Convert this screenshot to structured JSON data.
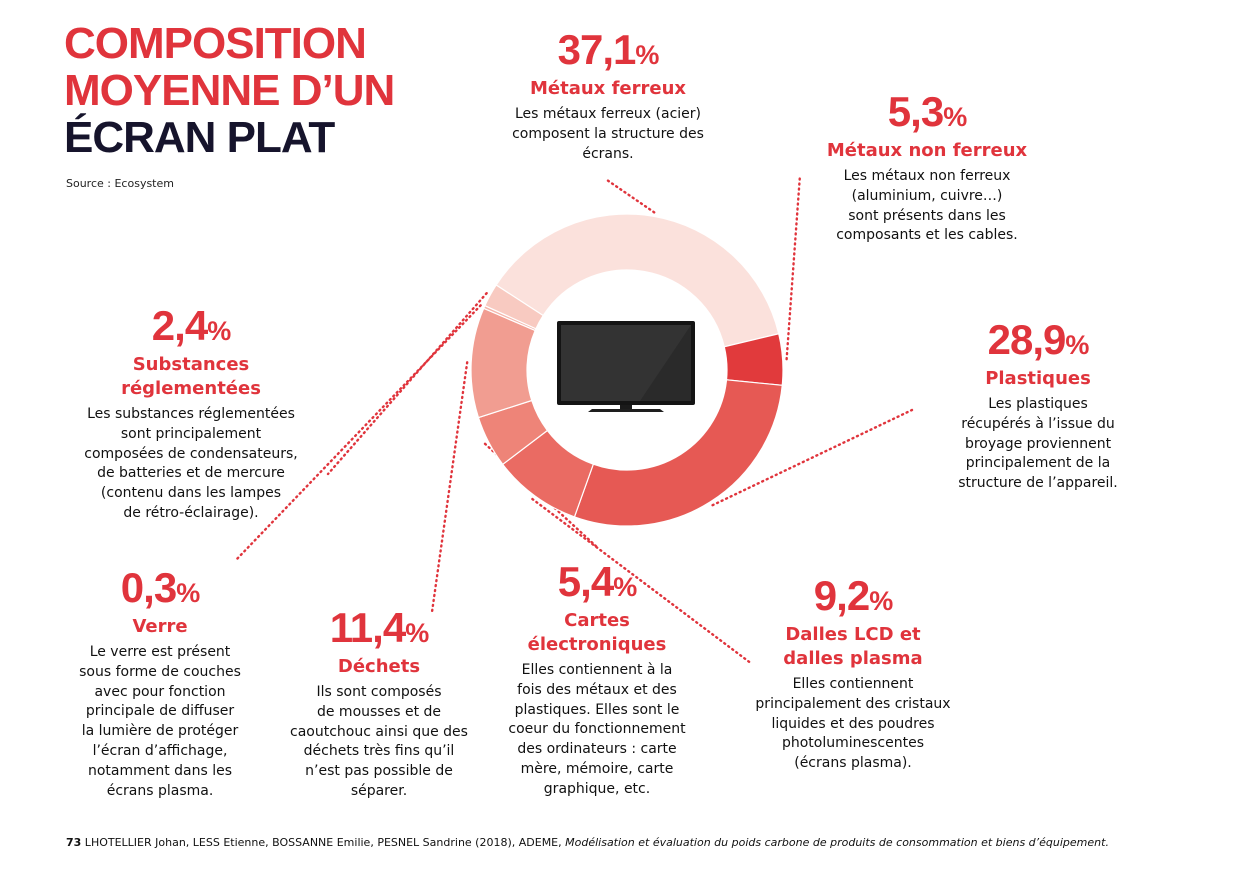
{
  "title": {
    "line1": "COMPOSITION",
    "line2": "MOYENNE D’UN",
    "line3": "ÉCRAN PLAT"
  },
  "source": "Source : Ecosystem",
  "chart_data": {
    "type": "pie",
    "style": "donut",
    "slices": [
      {
        "label": "Métaux ferreux",
        "value": 37.1,
        "value_text": "37,1",
        "color": "#fbe1dc",
        "desc": "Les métaux ferreux (acier)\ncomposent la structure des\nécrans."
      },
      {
        "label": "Métaux non ferreux",
        "value": 5.3,
        "value_text": "5,3",
        "color": "#e13a3c",
        "desc": "Les métaux non ferreux\n(aluminium, cuivre…)\nsont présents dans les\ncomposants et les cables."
      },
      {
        "label": "Plastiques",
        "value": 28.9,
        "value_text": "28,9",
        "color": "#e65954",
        "desc": "Les plastiques\nrécupérés à l’issue du\nbroyage proviennent\nprincipalement de la\nstructure de l’appareil."
      },
      {
        "label": "Dalles LCD et\ndalles plasma",
        "value": 9.2,
        "value_text": "9,2",
        "color": "#ea6b63",
        "desc": "Elles contiennent\nprincipalement des cristaux\nliquides et des poudres\nphotoluminescentes\n(écrans plasma)."
      },
      {
        "label": "Cartes\nélectroniques",
        "value": 5.4,
        "value_text": "5,4",
        "color": "#ee8478",
        "desc": "Elles contiennent à la\nfois des métaux et des\nplastiques. Elles sont le\ncoeur du fonctionnement\ndes ordinateurs : carte\nmère, mémoire, carte\ngraphique, etc."
      },
      {
        "label": "Déchets",
        "value": 11.4,
        "value_text": "11,4",
        "color": "#f19d91",
        "desc": "Ils sont composés\nde mousses et de\ncaoutchouc ainsi que des\ndéchets très fins qu’il\nn’est pas possible de\nséparer."
      },
      {
        "label": "Verre",
        "value": 0.3,
        "value_text": "0,3",
        "color": "#f5b6ab",
        "desc": "Le verre est présent\nsous forme de couches\navec pour fonction\nprincipale de diffuser\nla lumière de protéger\nl’écran d’affichage,\nnotamment dans les\nécrans plasma."
      },
      {
        "label": "Substances\nréglementées",
        "value": 2.4,
        "value_text": "2,4",
        "color": "#f8cac1",
        "desc": "Les substances réglementées\nsont principalement\ncomposées de condensateurs,\nde batteries et de mercure\n(contenu dans les lampes\nde rétro-éclairage)."
      }
    ],
    "unit": "%",
    "leader_color": "#e0343c"
  },
  "footer": {
    "number": "73",
    "authors": " LHOTELLIER Johan, LESS Etienne, BOSSANNE Emilie, PESNEL Sandrine (2018), ADEME, ",
    "work": "Modélisation et évaluation du poids carbone de produits de consommation et biens d’équipement."
  }
}
